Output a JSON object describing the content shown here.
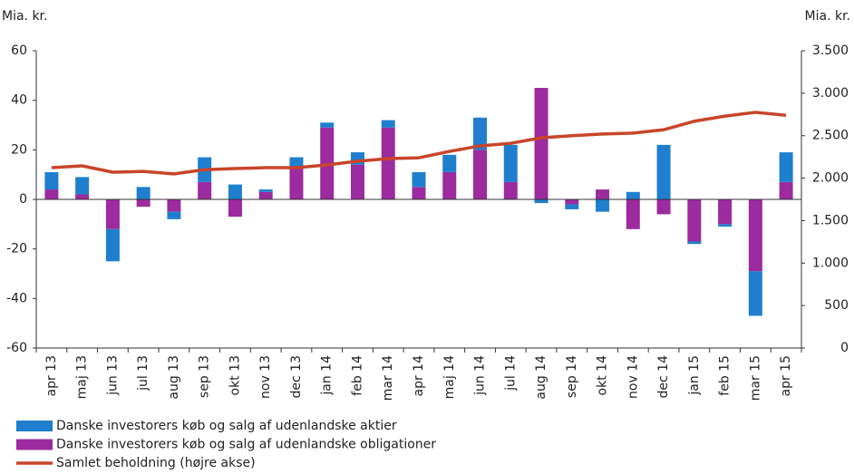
{
  "chart_data": {
    "type": "bar",
    "y_label": "Mia. kr.",
    "y2_label": "Mia. kr.",
    "categories": [
      "apr 13",
      "maj 13",
      "jun 13",
      "jul 13",
      "aug 13",
      "sep 13",
      "okt 13",
      "nov 13",
      "dec 13",
      "jan 14",
      "feb 14",
      "mar 14",
      "apr 14",
      "maj 14",
      "jun 14",
      "jul 14",
      "aug 14",
      "sep 14",
      "okt 14",
      "nov 14",
      "dec 14",
      "jan 15",
      "feb 15",
      "mar 15",
      "apr 15"
    ],
    "series": [
      {
        "name": "Danske investorers køb og salg af udenlandske aktier",
        "type": "bar",
        "color": "#1f7fce",
        "values": [
          7,
          7,
          -13,
          5,
          -3,
          10,
          6,
          1,
          4,
          2,
          5,
          3,
          6,
          7,
          13,
          15,
          -1.5,
          -2,
          -5,
          3,
          22,
          -1,
          -1,
          -18,
          12
        ]
      },
      {
        "name": "Danske investorers køb og salg af udenlandske obligationer",
        "type": "bar",
        "color": "#9b2b9e",
        "values": [
          4,
          2,
          -12,
          -3,
          -5,
          7,
          -7,
          3,
          13,
          29,
          14,
          29,
          5,
          11,
          20,
          7,
          45,
          -2,
          4,
          -12,
          -6,
          -17,
          -10,
          -29,
          7
        ]
      },
      {
        "name": "Samlet beholdning (højre akse)",
        "type": "line",
        "axis": "y2",
        "color": "#c8452a",
        "values": [
          2123,
          2145,
          2070,
          2080,
          2050,
          2100,
          2113,
          2123,
          2123,
          2155,
          2200,
          2230,
          2240,
          2315,
          2380,
          2410,
          2475,
          2500,
          2520,
          2530,
          2570,
          2670,
          2730,
          2775,
          2740
        ]
      }
    ],
    "ylim": [
      -60,
      60
    ],
    "yticks": [
      -60,
      -40,
      -20,
      0,
      20,
      40,
      60
    ],
    "y2lim": [
      0,
      3500
    ],
    "y2ticks": [
      0,
      500,
      {
        "value": 1000,
        "label": "1.000"
      },
      {
        "value": 1500,
        "label": "1.500"
      },
      {
        "value": 2000,
        "label": "2.000"
      },
      {
        "value": 2500,
        "label": "2.500"
      },
      {
        "value": 3000,
        "label": "3.000"
      },
      {
        "value": 3500,
        "label": "3.500"
      }
    ],
    "legend": "bottom-left"
  }
}
